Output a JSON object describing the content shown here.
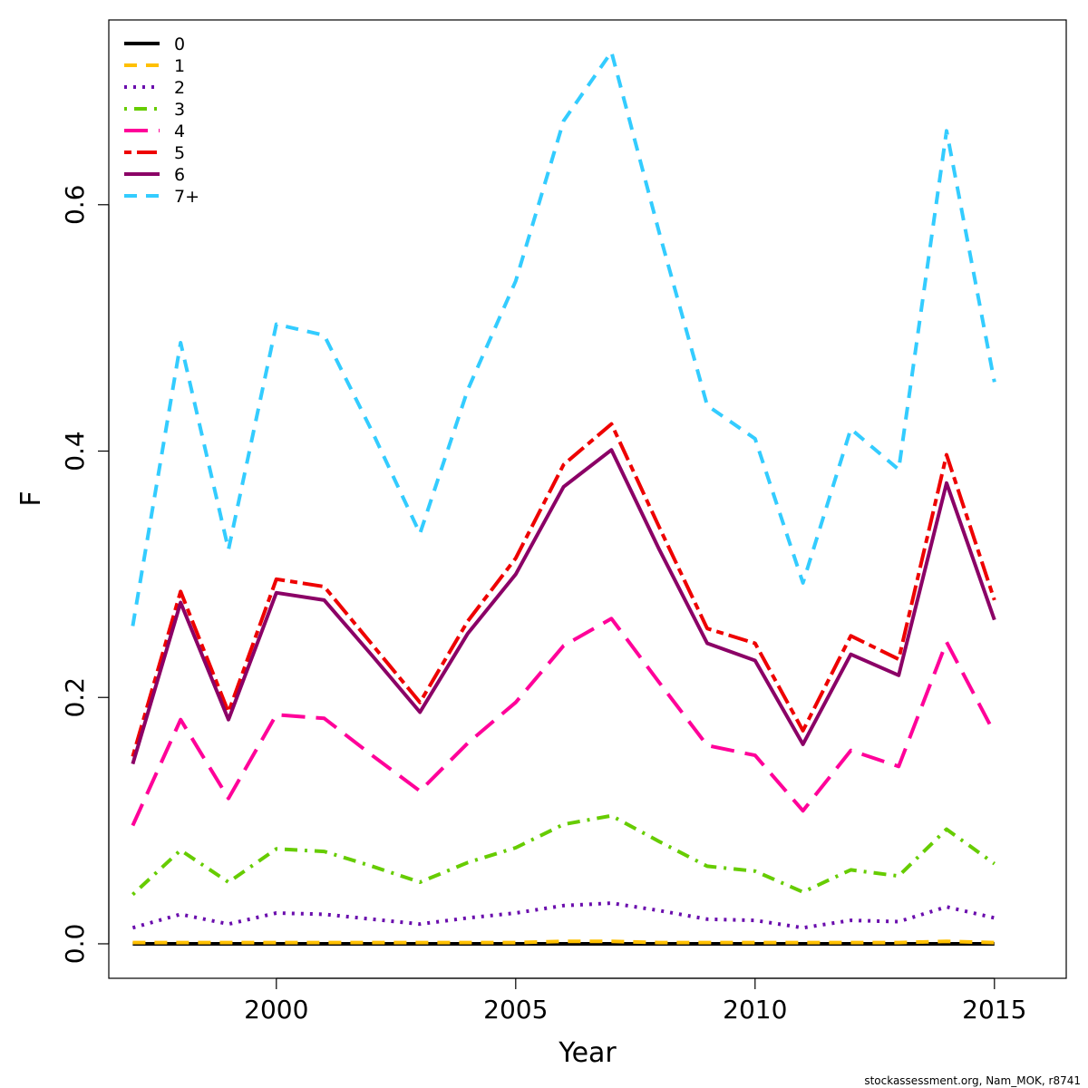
{
  "chart_data": {
    "type": "line",
    "title": "",
    "xlabel": "Year",
    "ylabel": "F",
    "xlim": [
      1996.5,
      2016.5
    ],
    "ylim": [
      -0.028,
      0.75
    ],
    "x_ticks": [
      2000,
      2005,
      2010,
      2015
    ],
    "y_ticks": [
      0.0,
      0.2,
      0.4,
      0.6
    ],
    "x_tick_labels": [
      "2000",
      "2005",
      "2010",
      "2015"
    ],
    "y_tick_labels": [
      "0.0",
      "0.2",
      "0.4",
      "0.6"
    ],
    "grid": false,
    "legend": "top-left",
    "x": [
      1997,
      1998,
      1999,
      2000,
      2001,
      2002,
      2003,
      2004,
      2005,
      2006,
      2007,
      2008,
      2009,
      2010,
      2011,
      2012,
      2013,
      2014,
      2015
    ],
    "series": [
      {
        "name": "0",
        "color": "#000000",
        "dash": "solid",
        "values": [
          0.0,
          0.0,
          0.0,
          0.0,
          0.0,
          0.0,
          0.0,
          0.0,
          0.0,
          0.0,
          0.0,
          0.0,
          0.0,
          0.0,
          0.0,
          0.0,
          0.0,
          0.0,
          0.0
        ]
      },
      {
        "name": "1",
        "color": "#FFC000",
        "dash": "dashed",
        "values": [
          0.001,
          0.001,
          0.001,
          0.001,
          0.001,
          0.001,
          0.001,
          0.001,
          0.001,
          0.002,
          0.002,
          0.001,
          0.001,
          0.001,
          0.001,
          0.001,
          0.001,
          0.002,
          0.001
        ]
      },
      {
        "name": "2",
        "color": "#6A0DAD",
        "dash": "dotted",
        "values": [
          0.013,
          0.024,
          0.016,
          0.025,
          0.024,
          0.02,
          0.016,
          0.021,
          0.025,
          0.031,
          0.033,
          0.027,
          0.02,
          0.019,
          0.013,
          0.019,
          0.018,
          0.03,
          0.021
        ]
      },
      {
        "name": "3",
        "color": "#66CC00",
        "dash": "dotdash",
        "values": [
          0.04,
          0.076,
          0.05,
          0.077,
          0.075,
          0.063,
          0.05,
          0.066,
          0.078,
          0.097,
          0.104,
          0.083,
          0.063,
          0.059,
          0.042,
          0.06,
          0.055,
          0.093,
          0.065
        ]
      },
      {
        "name": "4",
        "color": "#FF0099",
        "dash": "longdash",
        "values": [
          0.096,
          0.182,
          0.118,
          0.186,
          0.183,
          0.153,
          0.124,
          0.163,
          0.196,
          0.242,
          0.264,
          0.212,
          0.161,
          0.153,
          0.108,
          0.157,
          0.144,
          0.245,
          0.171
        ]
      },
      {
        "name": "5",
        "color": "#EE0000",
        "dash": "twodash",
        "values": [
          0.152,
          0.286,
          0.188,
          0.296,
          0.29,
          0.243,
          0.196,
          0.262,
          0.313,
          0.389,
          0.422,
          0.338,
          0.256,
          0.244,
          0.173,
          0.25,
          0.231,
          0.397,
          0.279
        ]
      },
      {
        "name": "6",
        "color": "#8B0066",
        "dash": "solid",
        "values": [
          0.146,
          0.277,
          0.182,
          0.285,
          0.279,
          0.234,
          0.188,
          0.252,
          0.3,
          0.371,
          0.401,
          0.32,
          0.244,
          0.23,
          0.162,
          0.235,
          0.218,
          0.374,
          0.263
        ]
      },
      {
        "name": "7+",
        "color": "#33CCFF",
        "dash": "dashed",
        "values": [
          0.258,
          0.488,
          0.32,
          0.503,
          0.494,
          0.416,
          0.333,
          0.45,
          0.538,
          0.668,
          0.724,
          0.577,
          0.437,
          0.41,
          0.293,
          0.418,
          0.385,
          0.66,
          0.456
        ]
      }
    ]
  },
  "footer": "stockassessment.org, Nam_MOK, r8741"
}
